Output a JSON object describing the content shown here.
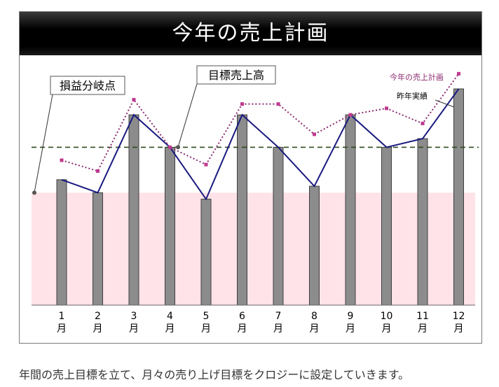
{
  "chart_data": {
    "type": "bar",
    "title": "今年の売上計画",
    "categories": [
      "1月",
      "2月",
      "3月",
      "4月",
      "5月",
      "6月",
      "7月",
      "8月",
      "9月",
      "10月",
      "11月",
      "12月"
    ],
    "category_labels": [
      {
        "num": "1",
        "unit": "月"
      },
      {
        "num": "2",
        "unit": "月"
      },
      {
        "num": "3",
        "unit": "月"
      },
      {
        "num": "4",
        "unit": "月"
      },
      {
        "num": "5",
        "unit": "月"
      },
      {
        "num": "6",
        "unit": "月"
      },
      {
        "num": "7",
        "unit": "月"
      },
      {
        "num": "8",
        "unit": "月"
      },
      {
        "num": "9",
        "unit": "月"
      },
      {
        "num": "10",
        "unit": "月"
      },
      {
        "num": "11",
        "unit": "月"
      },
      {
        "num": "12",
        "unit": "月"
      }
    ],
    "ylim": [
      0,
      100
    ],
    "grid": false,
    "series": [
      {
        "name": "",
        "kind": "bar",
        "values": [
          58,
          52,
          88,
          73,
          49,
          88,
          73,
          55,
          88,
          73,
          77,
          100
        ]
      },
      {
        "name": "昨年実績",
        "kind": "line",
        "values": [
          58,
          52,
          88,
          73,
          49,
          88,
          73,
          55,
          88,
          73,
          77,
          100
        ]
      },
      {
        "name": "今年の売上計画",
        "kind": "dotted-line",
        "values": [
          67,
          62,
          95,
          73,
          65,
          93,
          93,
          79,
          88,
          91,
          84,
          107
        ]
      }
    ],
    "reference_lines": {
      "target": {
        "label": "目標売上高",
        "value": 73
      },
      "break_even": {
        "label": "損益分岐点",
        "value": 52
      }
    },
    "legend_placement": "top-right",
    "colors": {
      "bar": "#8c8c8c",
      "bar_edge": "#3f3f3f",
      "line": "#1a1a80",
      "plan": "#8b2a6e",
      "plan_marker": "#c0398f",
      "target_line": "#2e4a1e",
      "loss_zone": "#ffe3e8"
    }
  },
  "caption": "年間の売上目標を立て、月々の売り上げ目標をクロジーに設定していきます。"
}
